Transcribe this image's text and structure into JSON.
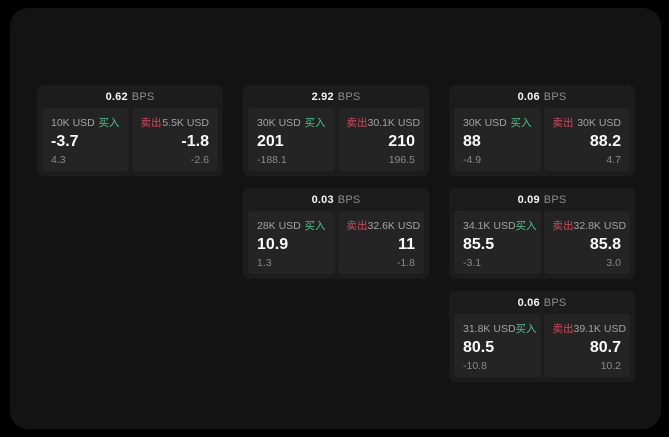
{
  "labels": {
    "buy": "买入",
    "sell": "卖出",
    "bps": "BPS"
  },
  "colors": {
    "page_bg": "#000000",
    "window_bg": "#131313",
    "card_bg": "#1c1c1c",
    "panel_bg": "#242424",
    "buy_green": "#4cc38a",
    "sell_red": "#cf4a5c"
  },
  "cards": [
    {
      "row": 1,
      "col": 1,
      "bps": "0.62",
      "buy": {
        "amount": "10K USD",
        "price": "-3.7",
        "delta": "4.3"
      },
      "sell": {
        "amount": "5.5K USD",
        "price": "-1.8",
        "delta": "-2.6"
      }
    },
    {
      "row": 1,
      "col": 2,
      "bps": "2.92",
      "buy": {
        "amount": "30K USD",
        "price": "201",
        "delta": "-188.1"
      },
      "sell": {
        "amount": "30.1K USD",
        "price": "210",
        "delta": "196.5"
      }
    },
    {
      "row": 1,
      "col": 3,
      "bps": "0.06",
      "buy": {
        "amount": "30K USD",
        "price": "88",
        "delta": "-4.9"
      },
      "sell": {
        "amount": "30K USD",
        "price": "88.2",
        "delta": "4.7"
      }
    },
    {
      "row": 2,
      "col": 2,
      "bps": "0.03",
      "buy": {
        "amount": "28K USD",
        "price": "10.9",
        "delta": "1.3"
      },
      "sell": {
        "amount": "32.6K USD",
        "price": "11",
        "delta": "-1.8"
      }
    },
    {
      "row": 2,
      "col": 3,
      "bps": "0.09",
      "buy": {
        "amount": "34.1K USD",
        "price": "85.5",
        "delta": "-3.1"
      },
      "sell": {
        "amount": "32.8K USD",
        "price": "85.8",
        "delta": "3.0"
      }
    },
    {
      "row": 3,
      "col": 3,
      "bps": "0.06",
      "buy": {
        "amount": "31.8K USD",
        "price": "80.5",
        "delta": "-10.8"
      },
      "sell": {
        "amount": "39.1K USD",
        "price": "80.7",
        "delta": "10.2"
      }
    }
  ]
}
